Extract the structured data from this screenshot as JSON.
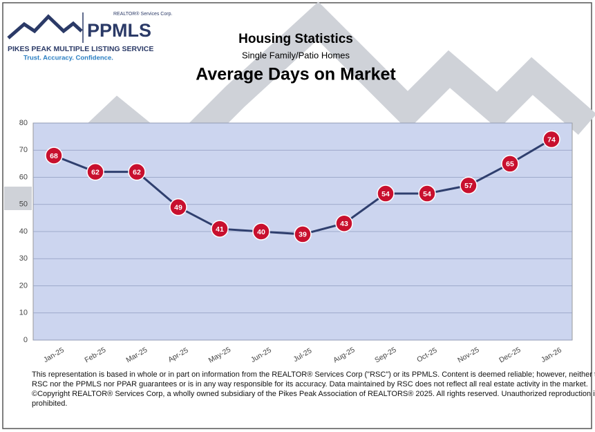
{
  "logo": {
    "corp": "REALTOR® Services Corp.",
    "brand": "PPMLS",
    "name": "PIKES PEAK MULTIPLE LISTING SERVICE",
    "tagline": "Trust. Accuracy. Confidence."
  },
  "chart_data": {
    "type": "line",
    "title": "Housing Statistics",
    "subtitle": "Single Family/Patio Homes",
    "heading": "Average Days on Market",
    "categories": [
      "Jan-25",
      "Feb-25",
      "Mar-25",
      "Apr-25",
      "May-25",
      "Jun-25",
      "Jul-25",
      "Aug-25",
      "Sep-25",
      "Oct-25",
      "Nov-25",
      "Dec-25",
      "Jan-26"
    ],
    "values": [
      68,
      62,
      62,
      49,
      41,
      40,
      39,
      43,
      54,
      54,
      57,
      65,
      74
    ],
    "color": "#2f3f6e",
    "marker_color": "#c8102e",
    "ylim": [
      0,
      80
    ],
    "yticks": [
      0,
      10,
      20,
      30,
      40,
      50,
      60,
      70,
      80
    ],
    "grid": true
  },
  "footnote": [
    "This representation is based in whole or in part on information from the REALTOR® Services Corp (\"RSC\") or its PPMLS. Content is deemed reliable; however, neither the",
    "RSC nor the PPMLS nor PPAR guarantees or is in any way responsible for its accuracy. Data maintained by RSC does not reflect all real estate activity in the market.",
    "©Copyright REALTOR® Services Corp, a wholly owned subsidiary of the Pikes Peak Association of REALTORS® 2025. All rights reserved. Unauthorized reproduction is",
    "prohibited."
  ]
}
